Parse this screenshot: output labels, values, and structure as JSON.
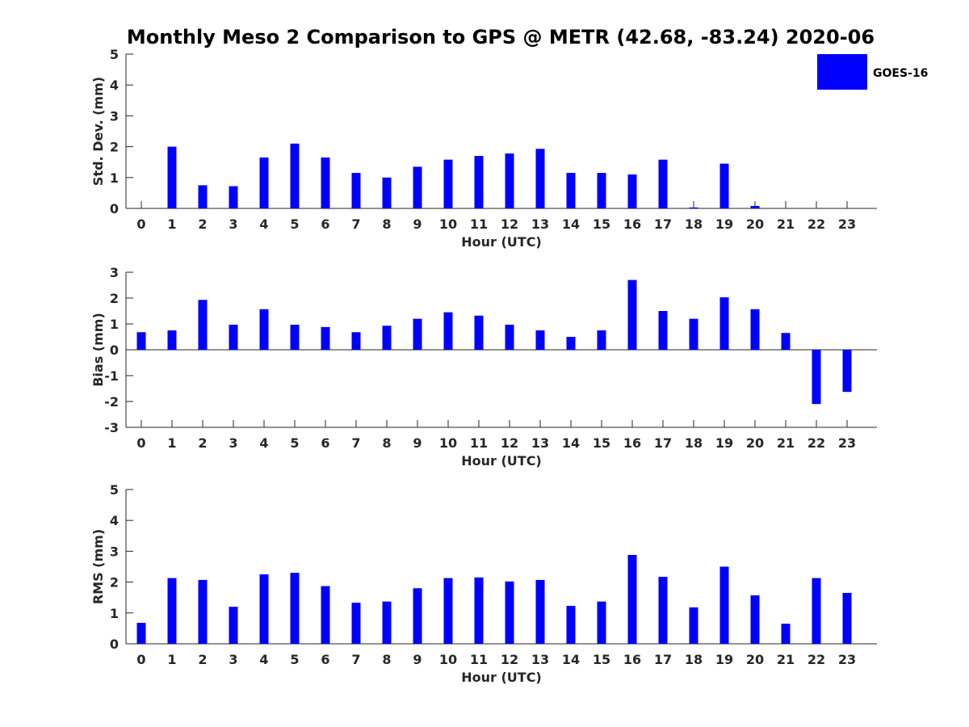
{
  "figure": {
    "title": "Monthly Meso 2 Comparison to GPS @ METR (42.68, -83.24) 2020-06"
  },
  "legend": {
    "label": "GOES-16",
    "color": "#0000ff"
  },
  "chart_data": [
    {
      "type": "bar",
      "categories": [
        "0",
        "1",
        "2",
        "3",
        "4",
        "5",
        "6",
        "7",
        "8",
        "9",
        "10",
        "11",
        "12",
        "13",
        "14",
        "15",
        "16",
        "17",
        "18",
        "19",
        "20",
        "21",
        "22",
        "23"
      ],
      "series": [
        {
          "name": "GOES-16",
          "values": [
            0,
            2.0,
            0.75,
            0.72,
            1.65,
            2.1,
            1.65,
            1.15,
            1.0,
            1.35,
            1.58,
            1.7,
            1.78,
            1.93,
            1.15,
            1.15,
            1.1,
            1.58,
            0.03,
            1.45,
            0.08,
            0,
            0,
            0
          ],
          "color": "#0000ff"
        }
      ],
      "xlabel": "Hour (UTC)",
      "ylabel": "Std. Dev. (mm)",
      "ylim": [
        0,
        5
      ],
      "yticks": [
        "0",
        "1",
        "2",
        "3",
        "4",
        "5"
      ],
      "grid": false,
      "legend_position": "top-right"
    },
    {
      "type": "bar",
      "categories": [
        "0",
        "1",
        "2",
        "3",
        "4",
        "5",
        "6",
        "7",
        "8",
        "9",
        "10",
        "11",
        "12",
        "13",
        "14",
        "15",
        "16",
        "17",
        "18",
        "19",
        "20",
        "21",
        "22",
        "23"
      ],
      "series": [
        {
          "name": "GOES-16",
          "values": [
            0.68,
            0.75,
            1.93,
            0.97,
            1.57,
            0.97,
            0.88,
            0.68,
            0.93,
            1.2,
            1.45,
            1.32,
            0.97,
            0.75,
            0.5,
            0.75,
            2.7,
            1.5,
            1.2,
            2.03,
            1.57,
            0.65,
            -2.1,
            -1.63
          ],
          "color": "#0000ff"
        }
      ],
      "xlabel": "Hour (UTC)",
      "ylabel": "Bias (mm)",
      "ylim": [
        -3,
        3
      ],
      "yticks": [
        "-3",
        "-2",
        "-1",
        "0",
        "1",
        "2",
        "3"
      ],
      "grid": false
    },
    {
      "type": "bar",
      "categories": [
        "0",
        "1",
        "2",
        "3",
        "4",
        "5",
        "6",
        "7",
        "8",
        "9",
        "10",
        "11",
        "12",
        "13",
        "14",
        "15",
        "16",
        "17",
        "18",
        "19",
        "20",
        "21",
        "22",
        "23"
      ],
      "series": [
        {
          "name": "GOES-16",
          "values": [
            0.68,
            2.13,
            2.07,
            1.2,
            2.25,
            2.3,
            1.87,
            1.33,
            1.37,
            1.8,
            2.13,
            2.15,
            2.02,
            2.07,
            1.23,
            1.37,
            2.88,
            2.17,
            1.18,
            2.5,
            1.57,
            0.65,
            2.13,
            1.65
          ],
          "color": "#0000ff"
        }
      ],
      "xlabel": "Hour (UTC)",
      "ylabel": "RMS (mm)",
      "ylim": [
        0,
        5
      ],
      "yticks": [
        "0",
        "1",
        "2",
        "3",
        "4",
        "5"
      ],
      "grid": false
    }
  ]
}
